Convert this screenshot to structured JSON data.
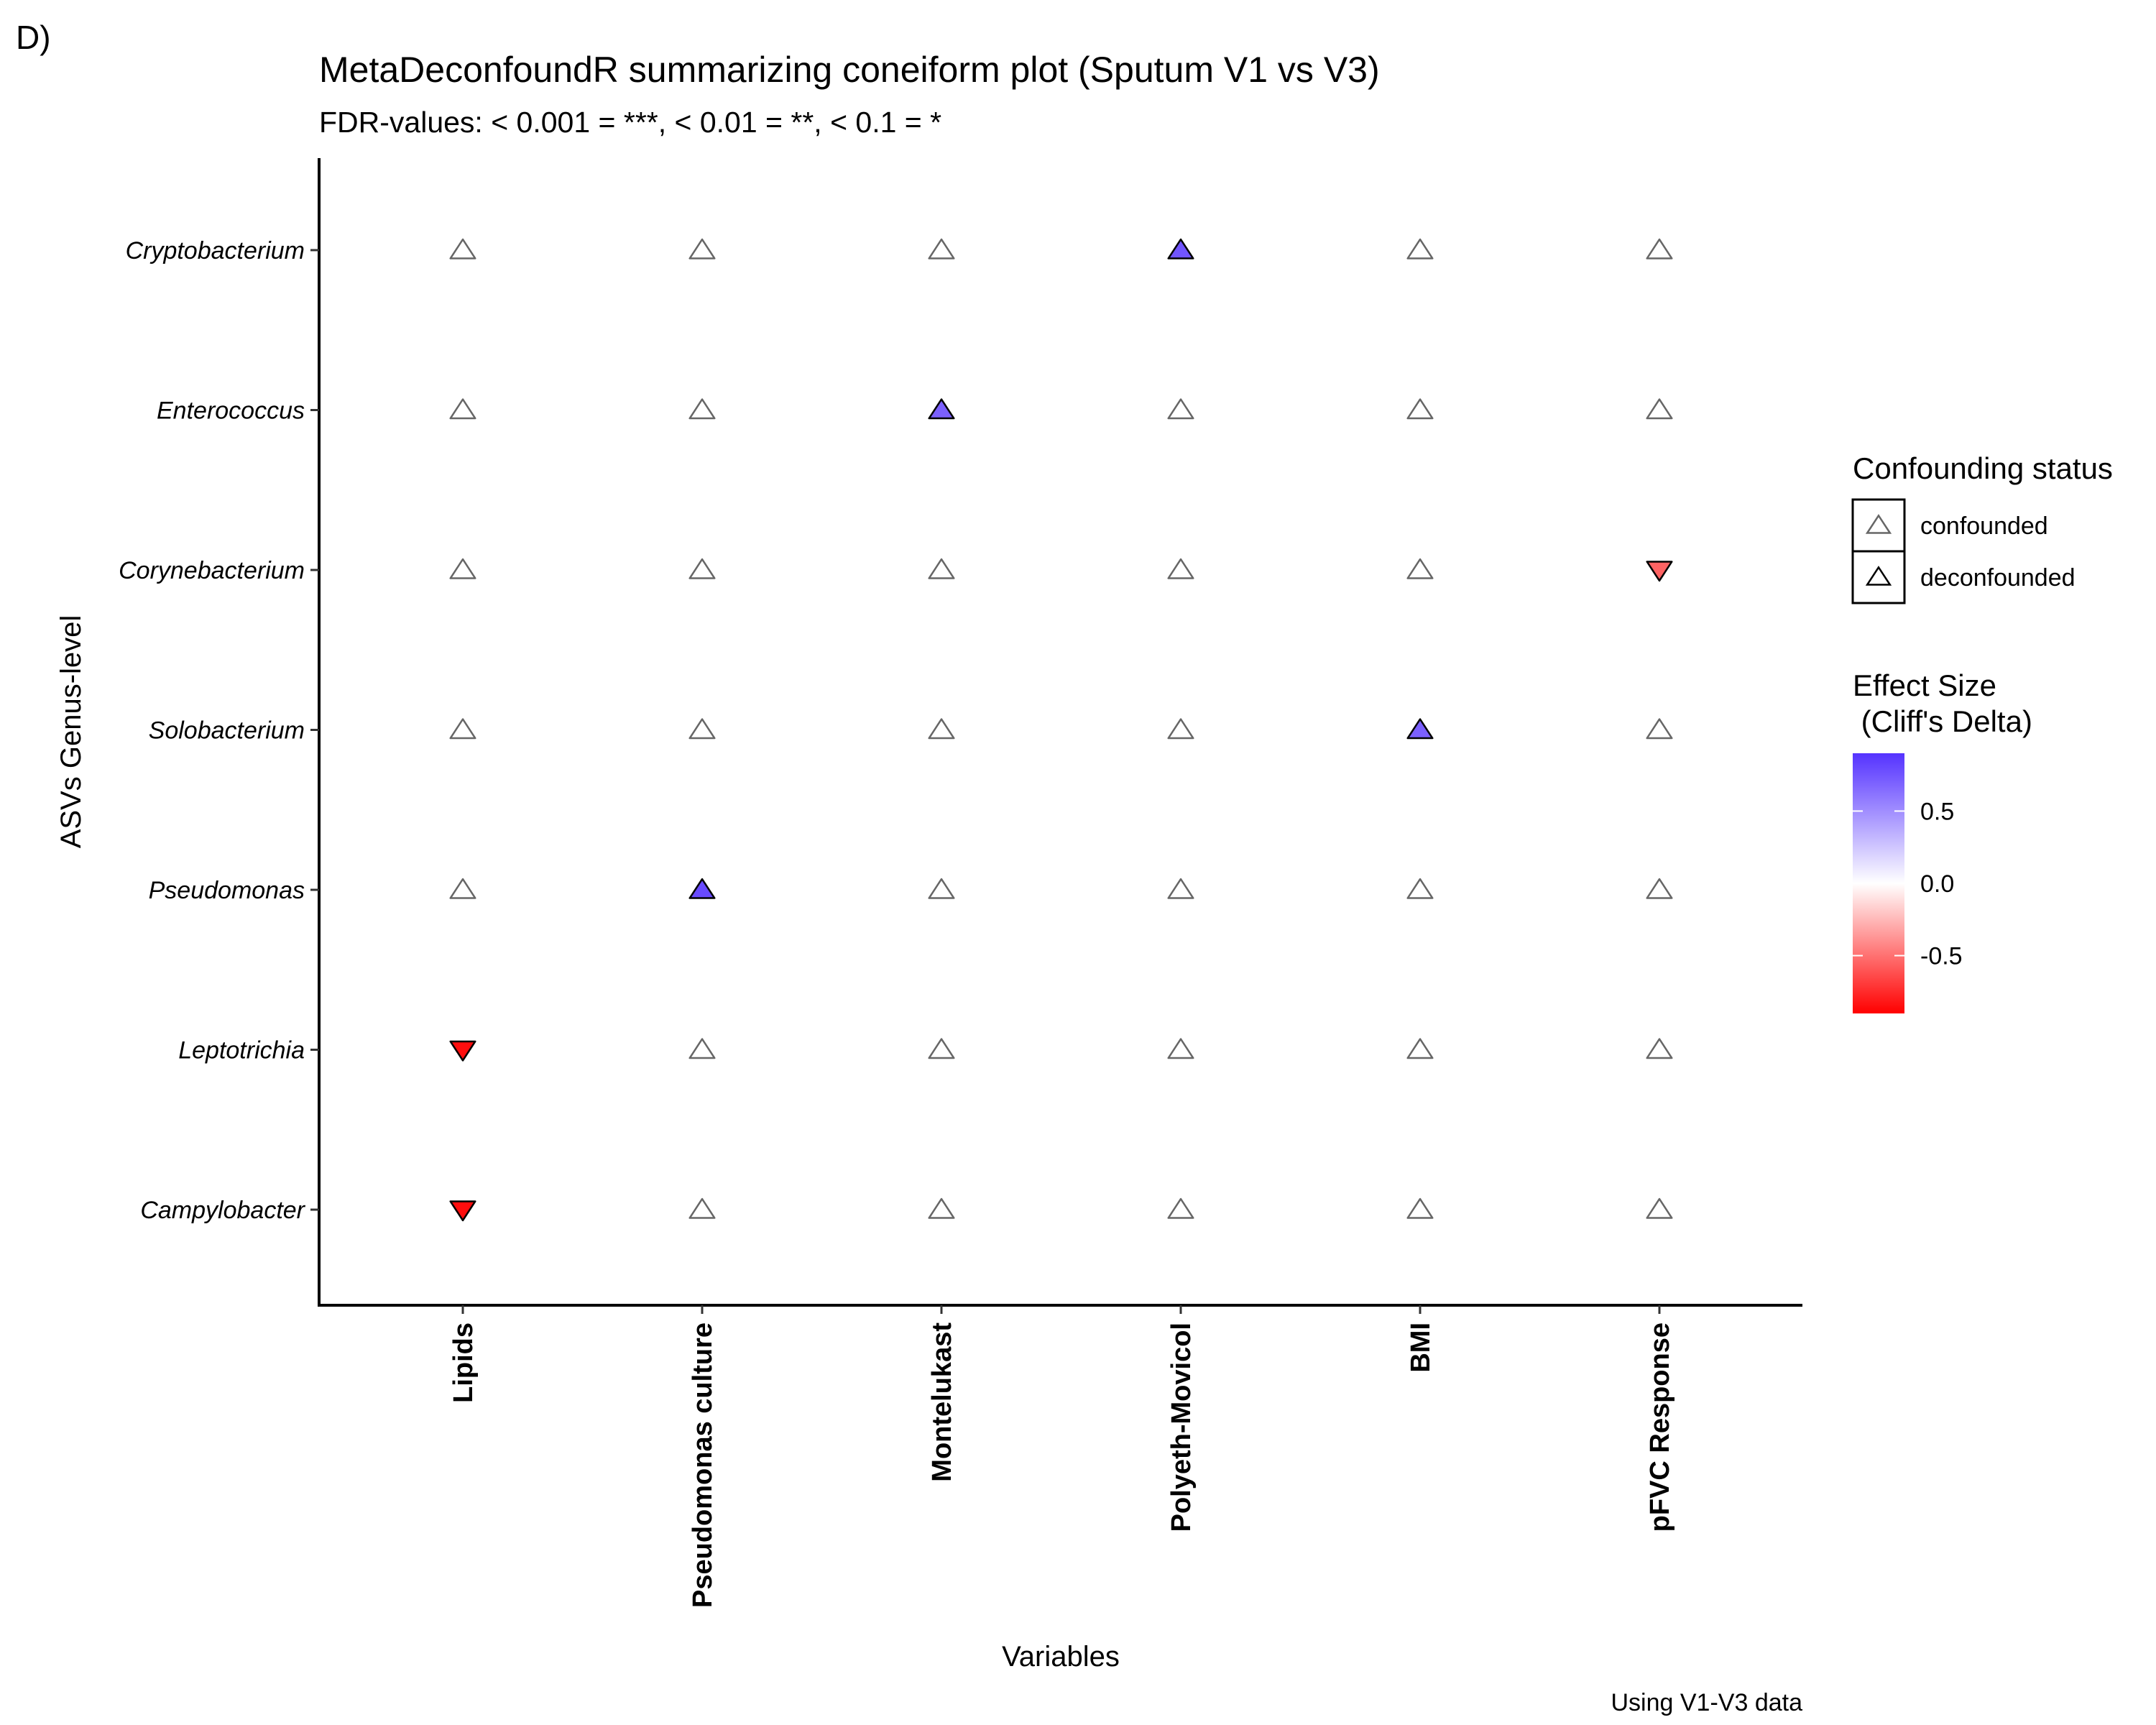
{
  "panel_label": "D)",
  "chart_data": {
    "type": "scatter",
    "title": "MetaDeconfoundR summarizing coneiform plot (Sputum V1 vs V3)",
    "subtitle": "FDR-values: < 0.001 = ***, < 0.01 = **, < 0.1 = *",
    "xlabel": "Variables",
    "ylabel": "ASVs Genus-level",
    "caption": "Using V1-V3 data",
    "x_categories": [
      "Lipids",
      "Pseudomonas culture",
      "Montelukast",
      "Polyeth-Movicol",
      "BMI",
      "pFVC Response"
    ],
    "y_categories": [
      "Cryptobacterium",
      "Enterococcus",
      "Corynebacterium",
      "Solobacterium",
      "Pseudomonas",
      "Leptotrichia",
      "Campylobacter"
    ],
    "default_status": "confounded",
    "points": [
      {
        "x": "Polyeth-Movicol",
        "y": "Cryptobacterium",
        "status": "deconfounded",
        "effect": 0.75
      },
      {
        "x": "Montelukast",
        "y": "Enterococcus",
        "status": "deconfounded",
        "effect": 0.7
      },
      {
        "x": "pFVC Response",
        "y": "Corynebacterium",
        "status": "deconfounded",
        "effect": -0.55
      },
      {
        "x": "BMI",
        "y": "Solobacterium",
        "status": "deconfounded",
        "effect": 0.7
      },
      {
        "x": "Pseudomonas culture",
        "y": "Pseudomonas",
        "status": "deconfounded",
        "effect": 0.8
      },
      {
        "x": "Lipids",
        "y": "Leptotrichia",
        "status": "deconfounded",
        "effect": -0.85
      },
      {
        "x": "Lipids",
        "y": "Campylobacter",
        "status": "deconfounded",
        "effect": -0.85
      }
    ],
    "legend_shape": {
      "title": "Confounding status",
      "items": [
        "confounded",
        "deconfounded"
      ]
    },
    "legend_color": {
      "title_line1": "Effect Size",
      "title_line2": " (Cliff's Delta)",
      "ticks": [
        "0.5",
        "0.0",
        "-0.5"
      ],
      "tick_values": [
        0.5,
        0.0,
        -0.5
      ],
      "range": [
        -0.9,
        0.9
      ],
      "colors": {
        "low": "#ff0000",
        "mid": "#ffffff",
        "high": "#5533ff"
      }
    },
    "grid": false,
    "legend_position": "right"
  }
}
